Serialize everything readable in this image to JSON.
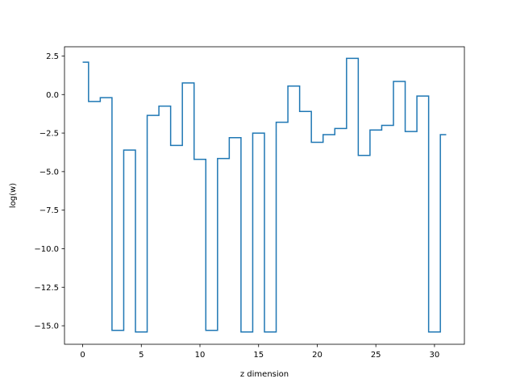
{
  "chart_data": {
    "type": "line",
    "drawstyle": "steps-mid",
    "xlabel": "z dimension",
    "ylabel": "log(w)",
    "xlim": [
      -1.55,
      32.55
    ],
    "ylim": [
      -16.2,
      3.1
    ],
    "xticks": [
      0,
      5,
      10,
      15,
      20,
      25,
      30
    ],
    "xtick_labels": [
      "0",
      "5",
      "10",
      "15",
      "20",
      "25",
      "30"
    ],
    "yticks": [
      2.5,
      0.0,
      -2.5,
      -5.0,
      -7.5,
      -10.0,
      -12.5,
      -15.0
    ],
    "ytick_labels": [
      "2.5",
      "0.0",
      "−2.5",
      "−5.0",
      "−7.5",
      "−10.0",
      "−12.5",
      "−15.0"
    ],
    "grid": false,
    "series": [
      {
        "color": "#1f77b4",
        "x": [
          0,
          1,
          2,
          3,
          4,
          5,
          6,
          7,
          8,
          9,
          10,
          11,
          12,
          13,
          14,
          15,
          16,
          17,
          18,
          19,
          20,
          21,
          22,
          23,
          24,
          25,
          26,
          27,
          28,
          29,
          30,
          31
        ],
        "y": [
          2.1,
          -0.45,
          -0.2,
          -15.3,
          -3.6,
          -15.4,
          -1.35,
          -0.75,
          -3.3,
          0.75,
          -4.2,
          -15.3,
          -4.15,
          -2.8,
          -15.4,
          -2.5,
          -15.4,
          -1.8,
          0.55,
          -1.1,
          -3.1,
          -2.6,
          -2.2,
          2.35,
          -3.95,
          -2.3,
          -2.0,
          0.85,
          -2.4,
          -0.1,
          -15.4,
          -2.6
        ]
      }
    ]
  }
}
